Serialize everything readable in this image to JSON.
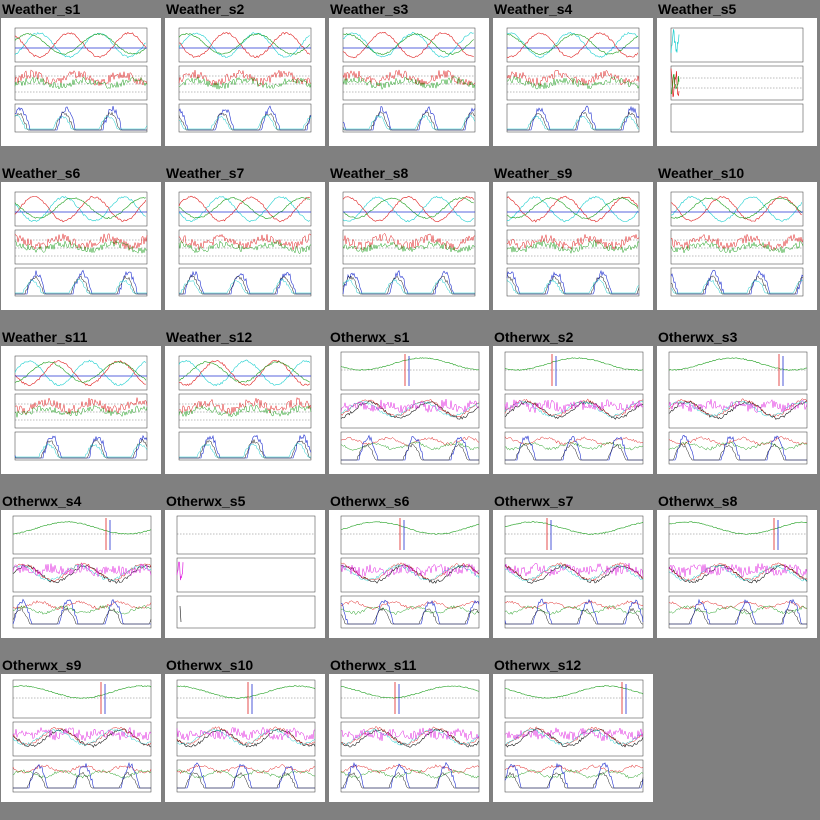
{
  "gallery": {
    "items": [
      {
        "title": "Weather_s1",
        "kind": "weather"
      },
      {
        "title": "Weather_s2",
        "kind": "weather"
      },
      {
        "title": "Weather_s3",
        "kind": "weather"
      },
      {
        "title": "Weather_s4",
        "kind": "weather"
      },
      {
        "title": "Weather_s5",
        "kind": "weather-sparse"
      },
      {
        "title": "Weather_s6",
        "kind": "weather"
      },
      {
        "title": "Weather_s7",
        "kind": "weather"
      },
      {
        "title": "Weather_s8",
        "kind": "weather"
      },
      {
        "title": "Weather_s9",
        "kind": "weather"
      },
      {
        "title": "Weather_s10",
        "kind": "weather"
      },
      {
        "title": "Weather_s11",
        "kind": "weather"
      },
      {
        "title": "Weather_s12",
        "kind": "weather"
      },
      {
        "title": "Otherwx_s1",
        "kind": "otherwx"
      },
      {
        "title": "Otherwx_s2",
        "kind": "otherwx"
      },
      {
        "title": "Otherwx_s3",
        "kind": "otherwx"
      },
      {
        "title": "Otherwx_s4",
        "kind": "otherwx"
      },
      {
        "title": "Otherwx_s5",
        "kind": "otherwx-sparse"
      },
      {
        "title": "Otherwx_s6",
        "kind": "otherwx"
      },
      {
        "title": "Otherwx_s7",
        "kind": "otherwx"
      },
      {
        "title": "Otherwx_s8",
        "kind": "otherwx"
      },
      {
        "title": "Otherwx_s9",
        "kind": "otherwx"
      },
      {
        "title": "Otherwx_s10",
        "kind": "otherwx"
      },
      {
        "title": "Otherwx_s11",
        "kind": "otherwx"
      },
      {
        "title": "Otherwx_s12",
        "kind": "otherwx"
      }
    ]
  },
  "colors": {
    "background": "#808080",
    "red": "#e02020",
    "green": "#20a020",
    "cyan": "#20d0d0",
    "blue": "#2030d0",
    "magenta": "#e020e0",
    "dark": "#202020"
  }
}
